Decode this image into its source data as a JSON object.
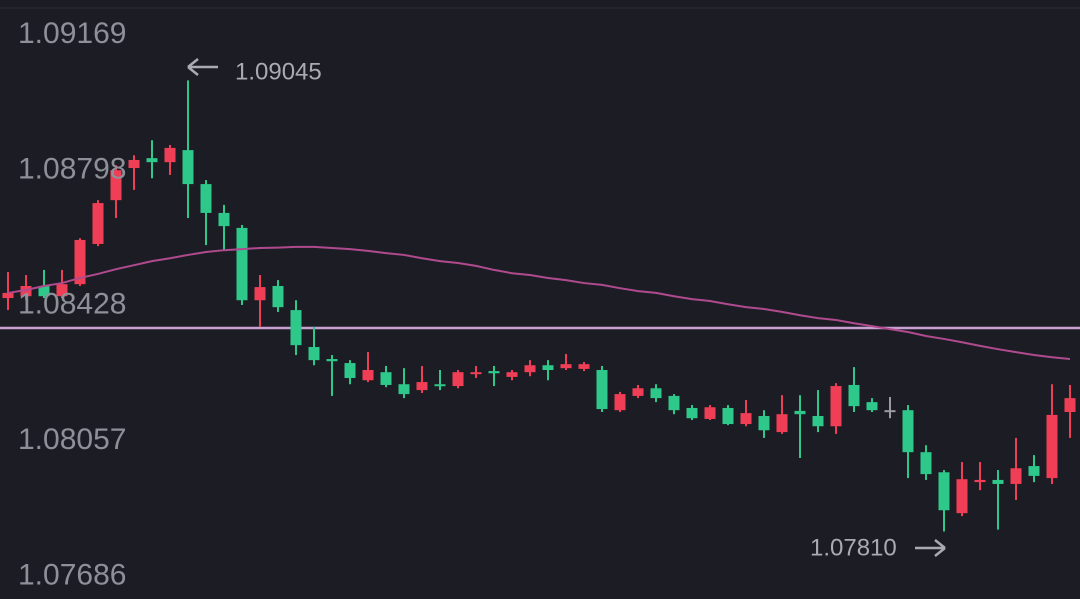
{
  "chart_data": {
    "type": "candlestick",
    "background": "#1c1d24",
    "up_color": "#ef3e55",
    "down_color": "#2ec88a",
    "flat_color": "#9a9ca4",
    "ylim": [
      1.07625,
      1.09265
    ],
    "yticks": [
      1.09169,
      1.08798,
      1.08428,
      1.08057,
      1.07686
    ],
    "grid": false,
    "open": [
      1.08449,
      1.08454,
      1.08482,
      1.08454,
      1.08487,
      1.08597,
      1.08717,
      1.08805,
      1.08832,
      1.08821,
      1.08854,
      1.08761,
      1.08682,
      1.08641,
      1.08443,
      1.08482,
      1.08416,
      1.08315,
      1.08282,
      1.08271,
      1.08224,
      1.08246,
      1.08213,
      1.08197,
      1.08213,
      1.08208,
      1.08241,
      1.08249,
      1.08233,
      1.08246,
      1.08265,
      1.08257,
      1.08255,
      1.08252,
      1.08142,
      1.08181,
      1.08202,
      1.08181,
      1.08148,
      1.08118,
      1.08148,
      1.08104,
      1.08126,
      1.08082,
      1.0814,
      1.08126,
      1.08098,
      1.08211,
      1.08164,
      1.08142,
      1.08142,
      1.08027,
      1.07972,
      1.0786,
      1.07945,
      1.07951,
      1.0794,
      1.07989,
      1.07956,
      1.08137
    ],
    "high": [
      1.0852,
      1.08512,
      1.08526,
      1.08526,
      1.08613,
      1.08717,
      1.08813,
      1.0884,
      1.08881,
      1.08868,
      1.09045,
      1.08772,
      1.08704,
      1.08649,
      1.08512,
      1.08498,
      1.08443,
      1.0837,
      1.08293,
      1.08279,
      1.08301,
      1.08263,
      1.08257,
      1.08263,
      1.08252,
      1.08252,
      1.08263,
      1.08263,
      1.08252,
      1.08279,
      1.08279,
      1.08296,
      1.08274,
      1.08263,
      1.08192,
      1.08211,
      1.08213,
      1.08186,
      1.08156,
      1.08156,
      1.08156,
      1.0817,
      1.08142,
      1.08183,
      1.08183,
      1.08197,
      1.08216,
      1.0826,
      1.08175,
      1.08178,
      1.08156,
      1.08046,
      1.07978,
      1.08,
      1.08,
      1.07978,
      1.08066,
      1.08019,
      1.08213,
      1.08211
    ],
    "low": [
      1.08416,
      1.08443,
      1.08449,
      1.08449,
      1.08482,
      1.08591,
      1.08668,
      1.08745,
      1.08777,
      1.08786,
      1.08668,
      1.08594,
      1.0858,
      1.0843,
      1.0837,
      1.08411,
      1.08293,
      1.08265,
      1.08181,
      1.08213,
      1.08219,
      1.08205,
      1.08175,
      1.08189,
      1.08197,
      1.08202,
      1.0823,
      1.08208,
      1.08224,
      1.08235,
      1.08224,
      1.08252,
      1.08249,
      1.08137,
      1.08137,
      1.08175,
      1.08164,
      1.08131,
      1.08115,
      1.08115,
      1.08101,
      1.08098,
      1.08066,
      1.08077,
      1.08011,
      1.08082,
      1.08077,
      1.08137,
      1.08137,
      1.0812,
      1.07956,
      1.07951,
      1.0781,
      1.07852,
      1.07923,
      1.07815,
      1.07896,
      1.07945,
      1.0794,
      1.08066
    ],
    "close": [
      1.08463,
      1.08482,
      1.08454,
      1.08487,
      1.08608,
      1.08709,
      1.08799,
      1.08827,
      1.08821,
      1.0886,
      1.08761,
      1.08682,
      1.08646,
      1.08443,
      1.08479,
      1.08424,
      1.0832,
      1.08279,
      1.08276,
      1.0823,
      1.08252,
      1.08211,
      1.08186,
      1.08219,
      1.08208,
      1.08246,
      1.08246,
      1.08243,
      1.08246,
      1.08265,
      1.08252,
      1.08268,
      1.08268,
      1.08145,
      1.08186,
      1.08202,
      1.08175,
      1.08142,
      1.0812,
      1.0815,
      1.08104,
      1.08134,
      1.08087,
      1.08131,
      1.08131,
      1.08098,
      1.08208,
      1.08153,
      1.08142,
      1.08142,
      1.08027,
      1.07967,
      1.07868,
      1.07953,
      1.07951,
      1.0794,
      1.07983,
      1.07962,
      1.08129,
      1.08175
    ],
    "ma": {
      "color": "#b04a8e",
      "values": [
        1.08463,
        1.08471,
        1.08482,
        1.0849,
        1.08504,
        1.08515,
        1.08528,
        1.08539,
        1.0855,
        1.08558,
        1.08567,
        1.08575,
        1.0858,
        1.08583,
        1.08586,
        1.08587,
        1.08589,
        1.08589,
        1.08586,
        1.08583,
        1.08578,
        1.08572,
        1.08567,
        1.08558,
        1.0855,
        1.08545,
        1.08537,
        1.08526,
        1.08517,
        1.08512,
        1.08504,
        1.08498,
        1.0849,
        1.08485,
        1.08476,
        1.08468,
        1.08463,
        1.08454,
        1.08446,
        1.08441,
        1.08432,
        1.08424,
        1.08419,
        1.08411,
        1.08402,
        1.08394,
        1.08389,
        1.0838,
        1.08372,
        1.08364,
        1.08356,
        1.08345,
        1.08337,
        1.08328,
        1.08318,
        1.08309,
        1.08301,
        1.08293,
        1.08287,
        1.08282
      ]
    },
    "price_line": {
      "value": 1.08367,
      "color": "#c9a2d4"
    },
    "annotations": [
      "1.09045",
      "1.07810"
    ]
  }
}
